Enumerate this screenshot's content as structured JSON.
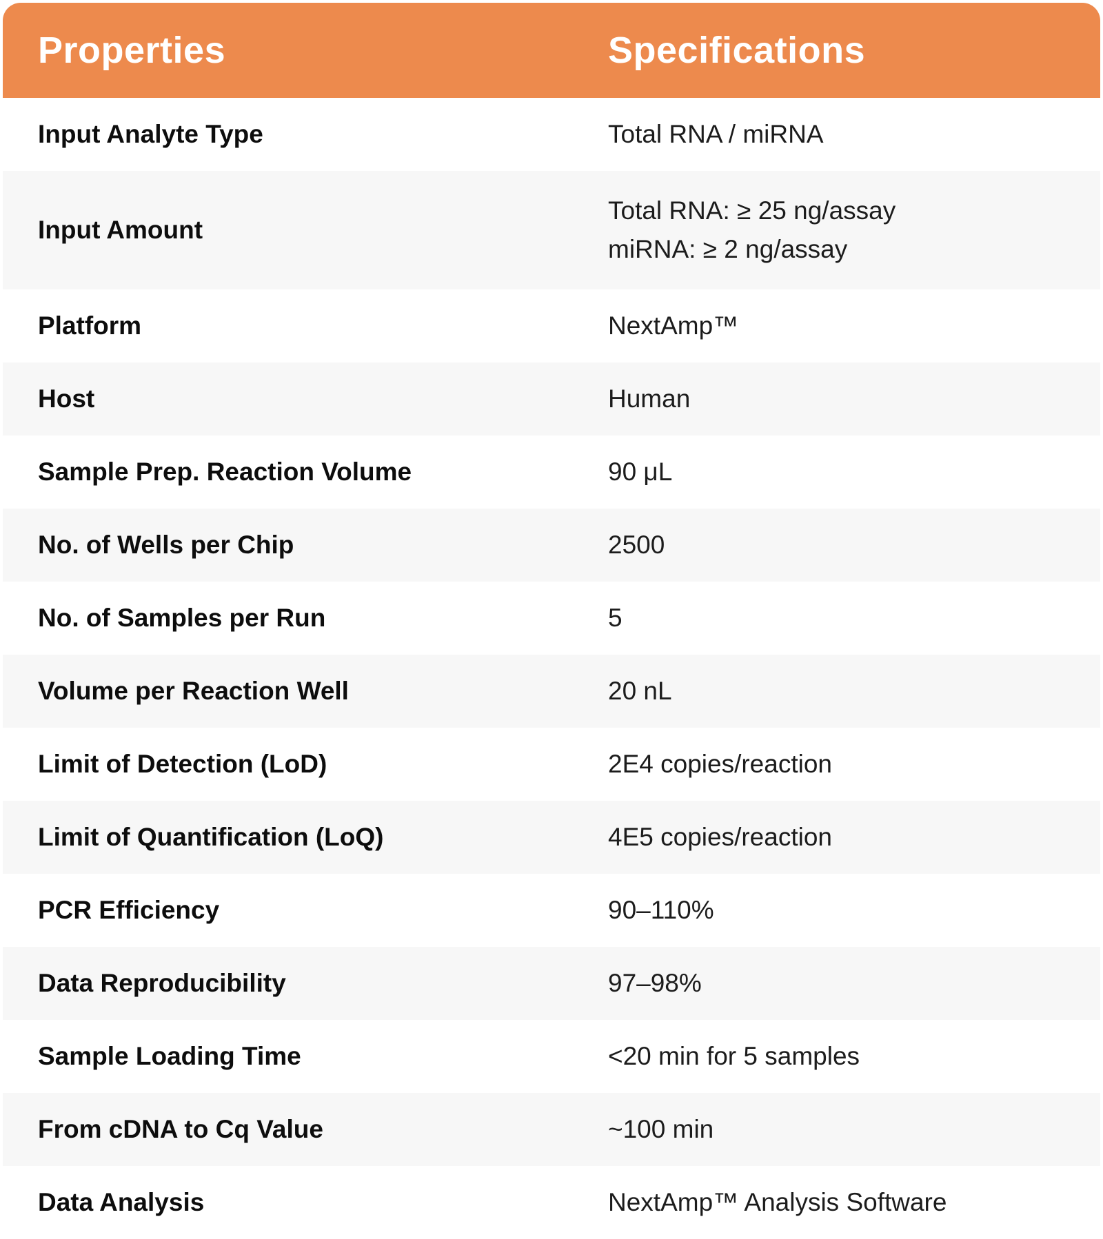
{
  "accent_color": "#ED8A4D",
  "stripe_color": "#F7F7F7",
  "table": {
    "header": {
      "properties_label": "Properties",
      "specifications_label": "Specifications"
    },
    "rows": [
      {
        "property": "Input Analyte Type",
        "specification": [
          "Total RNA / miRNA"
        ]
      },
      {
        "property": "Input Amount",
        "specification": [
          "Total RNA: ≥ 25 ng/assay",
          "miRNA: ≥ 2 ng/assay"
        ]
      },
      {
        "property": "Platform",
        "specification": [
          "NextAmp™"
        ]
      },
      {
        "property": "Host",
        "specification": [
          "Human"
        ]
      },
      {
        "property": "Sample Prep. Reaction Volume",
        "specification": [
          "90 μL"
        ]
      },
      {
        "property": "No. of Wells per Chip",
        "specification": [
          "2500"
        ]
      },
      {
        "property": "No. of Samples per Run",
        "specification": [
          "5"
        ]
      },
      {
        "property": "Volume per Reaction Well",
        "specification": [
          "20 nL"
        ]
      },
      {
        "property": "Limit of Detection (LoD)",
        "specification": [
          "2E4 copies/reaction"
        ]
      },
      {
        "property": "Limit of Quantification (LoQ)",
        "specification": [
          "4E5 copies/reaction"
        ]
      },
      {
        "property": "PCR Efficiency",
        "specification": [
          "90–110%"
        ]
      },
      {
        "property": "Data Reproducibility",
        "specification": [
          "97–98%"
        ]
      },
      {
        "property": "Sample Loading Time",
        "specification": [
          "<20 min for 5 samples"
        ]
      },
      {
        "property": "From cDNA to Cq Value",
        "specification": [
          "~100 min"
        ]
      },
      {
        "property": "Data Analysis",
        "specification": [
          "NextAmp™ Analysis Software"
        ]
      }
    ]
  }
}
